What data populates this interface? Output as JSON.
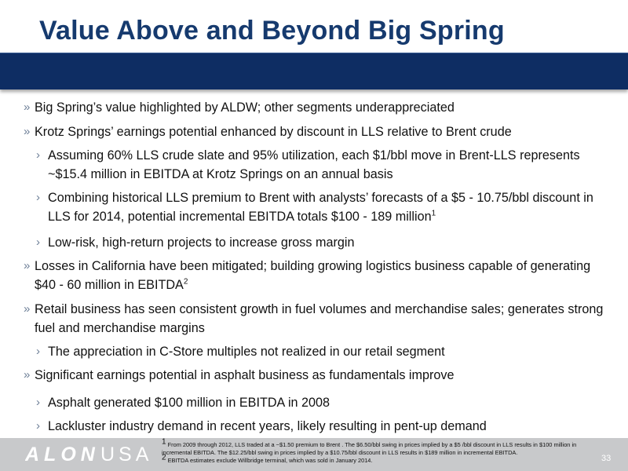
{
  "slide": {
    "title": "Value Above and Beyond Big Spring",
    "page_number": "33"
  },
  "bullets": [
    {
      "level": 1,
      "marker": "»",
      "text": "Big Spring’s value highlighted by ALDW; other segments underappreciated"
    },
    {
      "level": 1,
      "marker": "»",
      "text": "Krotz Springs’ earnings potential enhanced by discount in LLS relative to Brent crude"
    },
    {
      "level": 2,
      "marker": "›",
      "text": "Assuming 60% LLS crude slate and 95% utilization, each $1/bbl move in Brent-LLS represents ~$15.4 million in EBITDA at Krotz Springs on an annual basis"
    },
    {
      "level": 2,
      "marker": "›",
      "text": "Combining historical LLS premium to Brent with analysts’ forecasts of a $5 - 10.75/bbl discount in LLS for 2014, potential incremental EBITDA totals $100 - 189 million",
      "sup": "1"
    },
    {
      "level": 2,
      "marker": "›",
      "text": "Low-risk, high-return projects to increase gross margin"
    },
    {
      "level": 1,
      "marker": "»",
      "text": "Losses in California have been mitigated; building growing logistics business capable of generating $40 - 60 million in EBITDA",
      "sup": "2"
    },
    {
      "level": 1,
      "marker": "»",
      "text": "Retail business has seen consistent growth in fuel volumes and merchandise sales; generates strong  fuel and merchandise margins"
    },
    {
      "level": 2,
      "marker": "›",
      "text": "The appreciation in C-Store multiples not realized in our retail segment"
    },
    {
      "level": 1,
      "marker": "»",
      "text": "Significant earnings potential in asphalt business as fundamentals improve"
    },
    {
      "level": 2,
      "marker": "›",
      "text": "Asphalt generated $100 million in EBITDA in 2008"
    },
    {
      "level": 2,
      "marker": "›",
      "text": "Lackluster industry demand in recent years, likely resulting in pent-up demand"
    }
  ],
  "footer": {
    "logo_text": "ALONUSA",
    "footnote_1_marker": "1",
    "footnote_1": "From 2009 through 2012, LLS traded at a ~$1.50 premium to Brent . The $6.50/bbl swing in prices implied by a $5 /bbl discount  in LLS results in $100 million in incremental EBITDA. The $12.25/bbl swing in prices implied by a $10.75/bbl discount in LLS results in $189 million in incremental EBITDA.",
    "footnote_2_marker": "2",
    "footnote_2": "EBITDA estimates exclude Willbridge terminal, which was sold in January 2014."
  },
  "colors": {
    "title": "#163a6e",
    "title_bar": "#0e2d63",
    "footer": "#c8c9cb",
    "marker": "#6d7f97"
  }
}
